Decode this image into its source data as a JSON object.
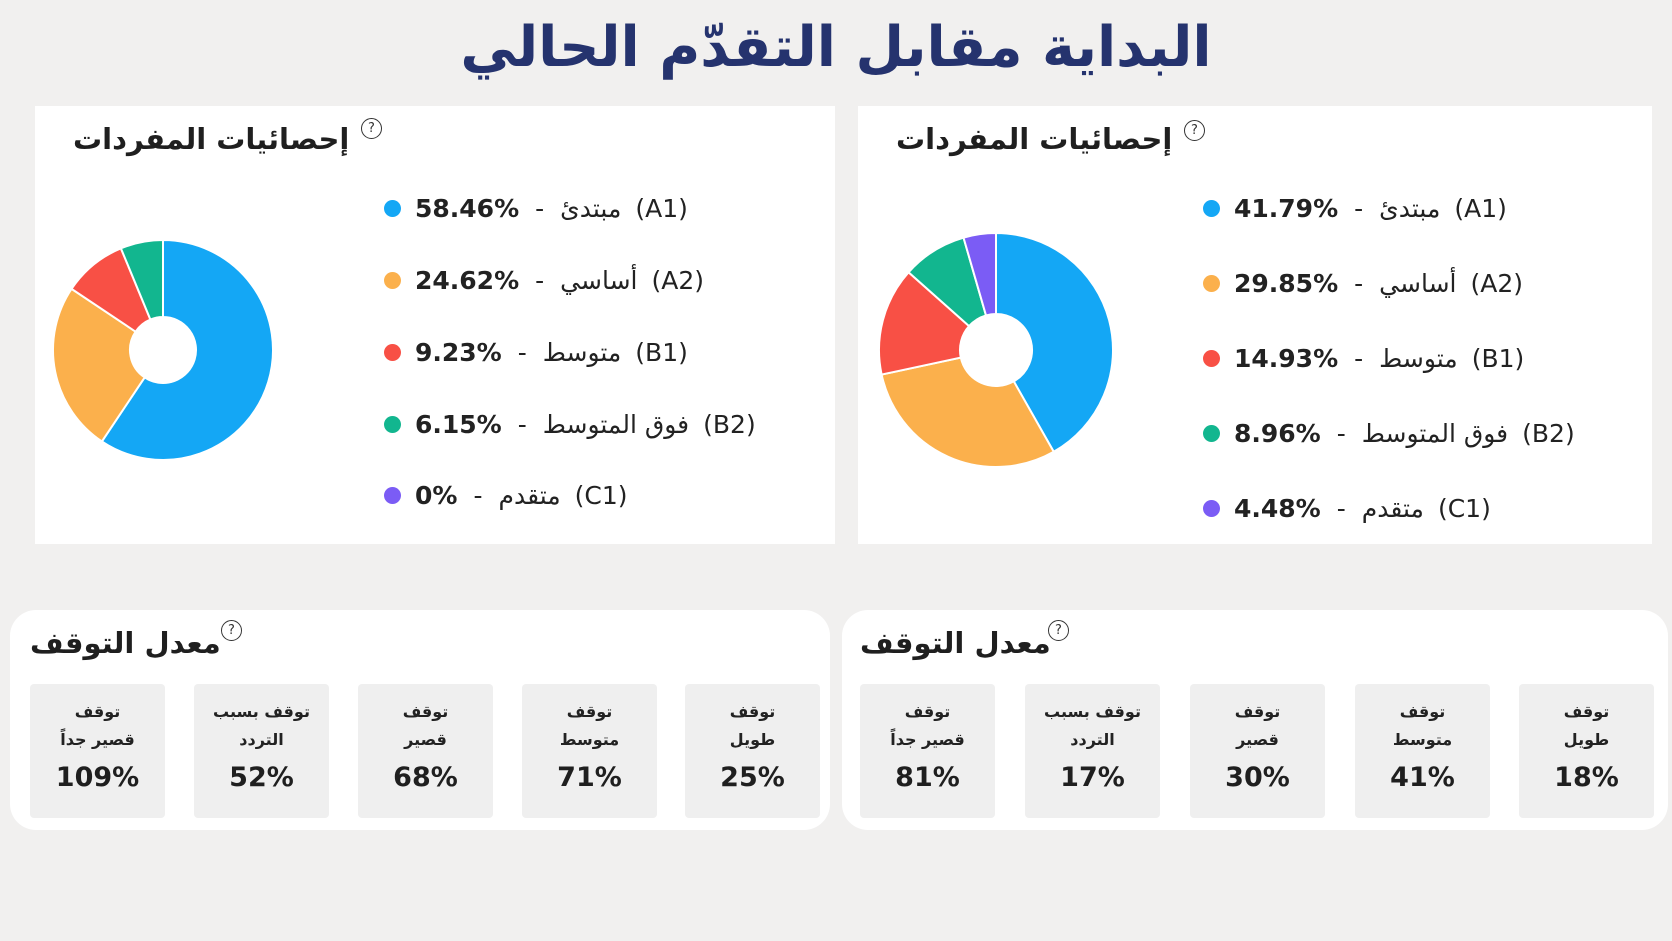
{
  "title": "البداية مقابل التقدّم الحالي",
  "help_glyph": "?",
  "vocab_panels": [
    {
      "title": "إحصائيات المفردات",
      "legend": [
        {
          "pct": "58.46%",
          "sep": "-",
          "name": "مبتدئ",
          "code": "(A1)",
          "color": "#14a7f5"
        },
        {
          "pct": "24.62%",
          "sep": "-",
          "name": "أساسي",
          "code": "(A2)",
          "color": "#fbb04c"
        },
        {
          "pct": "9.23%",
          "sep": "-",
          "name": "متوسط",
          "code": "(B1)",
          "color": "#f85045"
        },
        {
          "pct": "6.15%",
          "sep": "-",
          "name": "فوق المتوسط",
          "code": "(B2)",
          "color": "#12b68f"
        },
        {
          "pct": "0%",
          "sep": "-",
          "name": "متقدم",
          "code": "(C1)",
          "color": "#7b5cf5"
        }
      ]
    },
    {
      "title": "إحصائيات المفردات",
      "legend": [
        {
          "pct": "41.79%",
          "sep": "-",
          "name": "مبتدئ",
          "code": "(A1)",
          "color": "#14a7f5"
        },
        {
          "pct": "29.85%",
          "sep": "-",
          "name": "أساسي",
          "code": "(A2)",
          "color": "#fbb04c"
        },
        {
          "pct": "14.93%",
          "sep": "-",
          "name": "متوسط",
          "code": "(B1)",
          "color": "#f85045"
        },
        {
          "pct": "8.96%",
          "sep": "-",
          "name": "فوق المتوسط",
          "code": "(B2)",
          "color": "#12b68f"
        },
        {
          "pct": "4.48%",
          "sep": "-",
          "name": "متقدم",
          "code": "(C1)",
          "color": "#7b5cf5"
        }
      ]
    }
  ],
  "pause_panels": [
    {
      "title": "معدل التوقف",
      "tiles": [
        {
          "line1": "توقف",
          "line2": "قصير جداً",
          "value": "109%"
        },
        {
          "line1": "توقف بسبب",
          "line2": "التردد",
          "value": "52%"
        },
        {
          "line1": "توقف",
          "line2": "قصير",
          "value": "68%"
        },
        {
          "line1": "توقف",
          "line2": "متوسط",
          "value": "71%"
        },
        {
          "line1": "توقف",
          "line2": "طويل",
          "value": "25%"
        }
      ]
    },
    {
      "title": "معدل التوقف",
      "tiles": [
        {
          "line1": "توقف",
          "line2": "قصير جداً",
          "value": "81%"
        },
        {
          "line1": "توقف بسبب",
          "line2": "التردد",
          "value": "17%"
        },
        {
          "line1": "توقف",
          "line2": "قصير",
          "value": "30%"
        },
        {
          "line1": "توقف",
          "line2": "متوسط",
          "value": "41%"
        },
        {
          "line1": "توقف",
          "line2": "طويل",
          "value": "18%"
        }
      ]
    }
  ],
  "chart_data": [
    {
      "type": "pie",
      "categories": [
        "مبتدئ (A1)",
        "أساسي (A2)",
        "متوسط (B1)",
        "فوق المتوسط (B2)",
        "متقدم (C1)"
      ],
      "values": [
        58.46,
        24.62,
        9.23,
        6.15,
        0
      ],
      "colors": [
        "#14a7f5",
        "#fbb04c",
        "#f85045",
        "#12b68f",
        "#7b5cf5"
      ],
      "title": "إحصائيات المفردات",
      "legend": "right"
    },
    {
      "type": "pie",
      "categories": [
        "مبتدئ (A1)",
        "أساسي (A2)",
        "متوسط (B1)",
        "فوق المتوسط (B2)",
        "متقدم (C1)"
      ],
      "values": [
        41.79,
        29.85,
        14.93,
        8.96,
        4.48
      ],
      "colors": [
        "#14a7f5",
        "#fbb04c",
        "#f85045",
        "#12b68f",
        "#7b5cf5"
      ],
      "title": "إحصائيات المفردات",
      "legend": "right"
    }
  ]
}
